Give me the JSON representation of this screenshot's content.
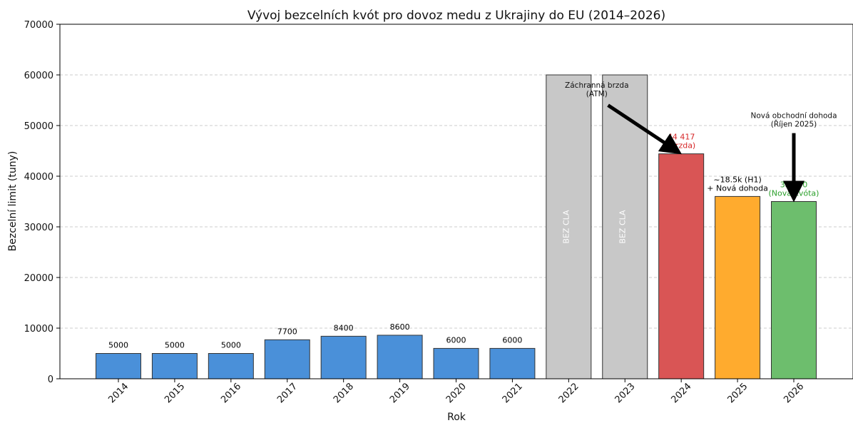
{
  "chart_data": {
    "type": "bar",
    "title": "Vývoj bezcelních kvót pro dovoz medu z Ukrajiny do EU (2014–2026)",
    "xlabel": "Rok",
    "ylabel": "Bezcelní limit (tuny)",
    "ylim": [
      0,
      70000
    ],
    "yticks": [
      0,
      10000,
      20000,
      30000,
      40000,
      50000,
      60000,
      70000
    ],
    "grid": "horizontal dashed",
    "categories": [
      "2014",
      "2015",
      "2016",
      "2017",
      "2018",
      "2019",
      "2020",
      "2021",
      "2022",
      "2023",
      "2024",
      "2025",
      "2026"
    ],
    "values": [
      5000,
      5000,
      5000,
      7700,
      8400,
      8600,
      6000,
      6000,
      60000,
      60000,
      44417,
      36000,
      35000
    ],
    "bar_colors": [
      "#4a90d9",
      "#4a90d9",
      "#4a90d9",
      "#4a90d9",
      "#4a90d9",
      "#4a90d9",
      "#4a90d9",
      "#4a90d9",
      "#c8c8c8",
      "#c8c8c8",
      "#d95555",
      "#ffab2e",
      "#6dbe6d"
    ],
    "bar_labels": [
      "5000",
      "5000",
      "5000",
      "7700",
      "8400",
      "8600",
      "6000",
      "6000",
      "",
      "",
      "44 417\n(Brzda)",
      "~18.5k (H1)\n+ Nová dohoda",
      "35 000\n(Nová kvóta)"
    ],
    "bar_label_colors": [
      "#000000",
      "#000000",
      "#000000",
      "#000000",
      "#000000",
      "#000000",
      "#000000",
      "#000000",
      "#000000",
      "#000000",
      "#d62728",
      "#000000",
      "#2ca02c"
    ],
    "inside_labels": [
      "",
      "",
      "",
      "",
      "",
      "",
      "",
      "",
      "BEZ CLA",
      "BEZ CLA",
      "",
      "",
      ""
    ],
    "annotations": [
      {
        "text": "Záchranná brzda\n(ATM)",
        "anchor_year": "2022.5",
        "anchor_value": 57500,
        "arrow_from": [
          2022.7,
          54000
        ],
        "arrow_to": [
          2024,
          44417
        ]
      },
      {
        "text": "Nová obchodní dohoda\n(Říjen 2025)",
        "anchor_year": "2026",
        "anchor_value": 51500,
        "arrow_from": [
          2026,
          48500
        ],
        "arrow_to": [
          2026,
          35000
        ]
      }
    ]
  }
}
